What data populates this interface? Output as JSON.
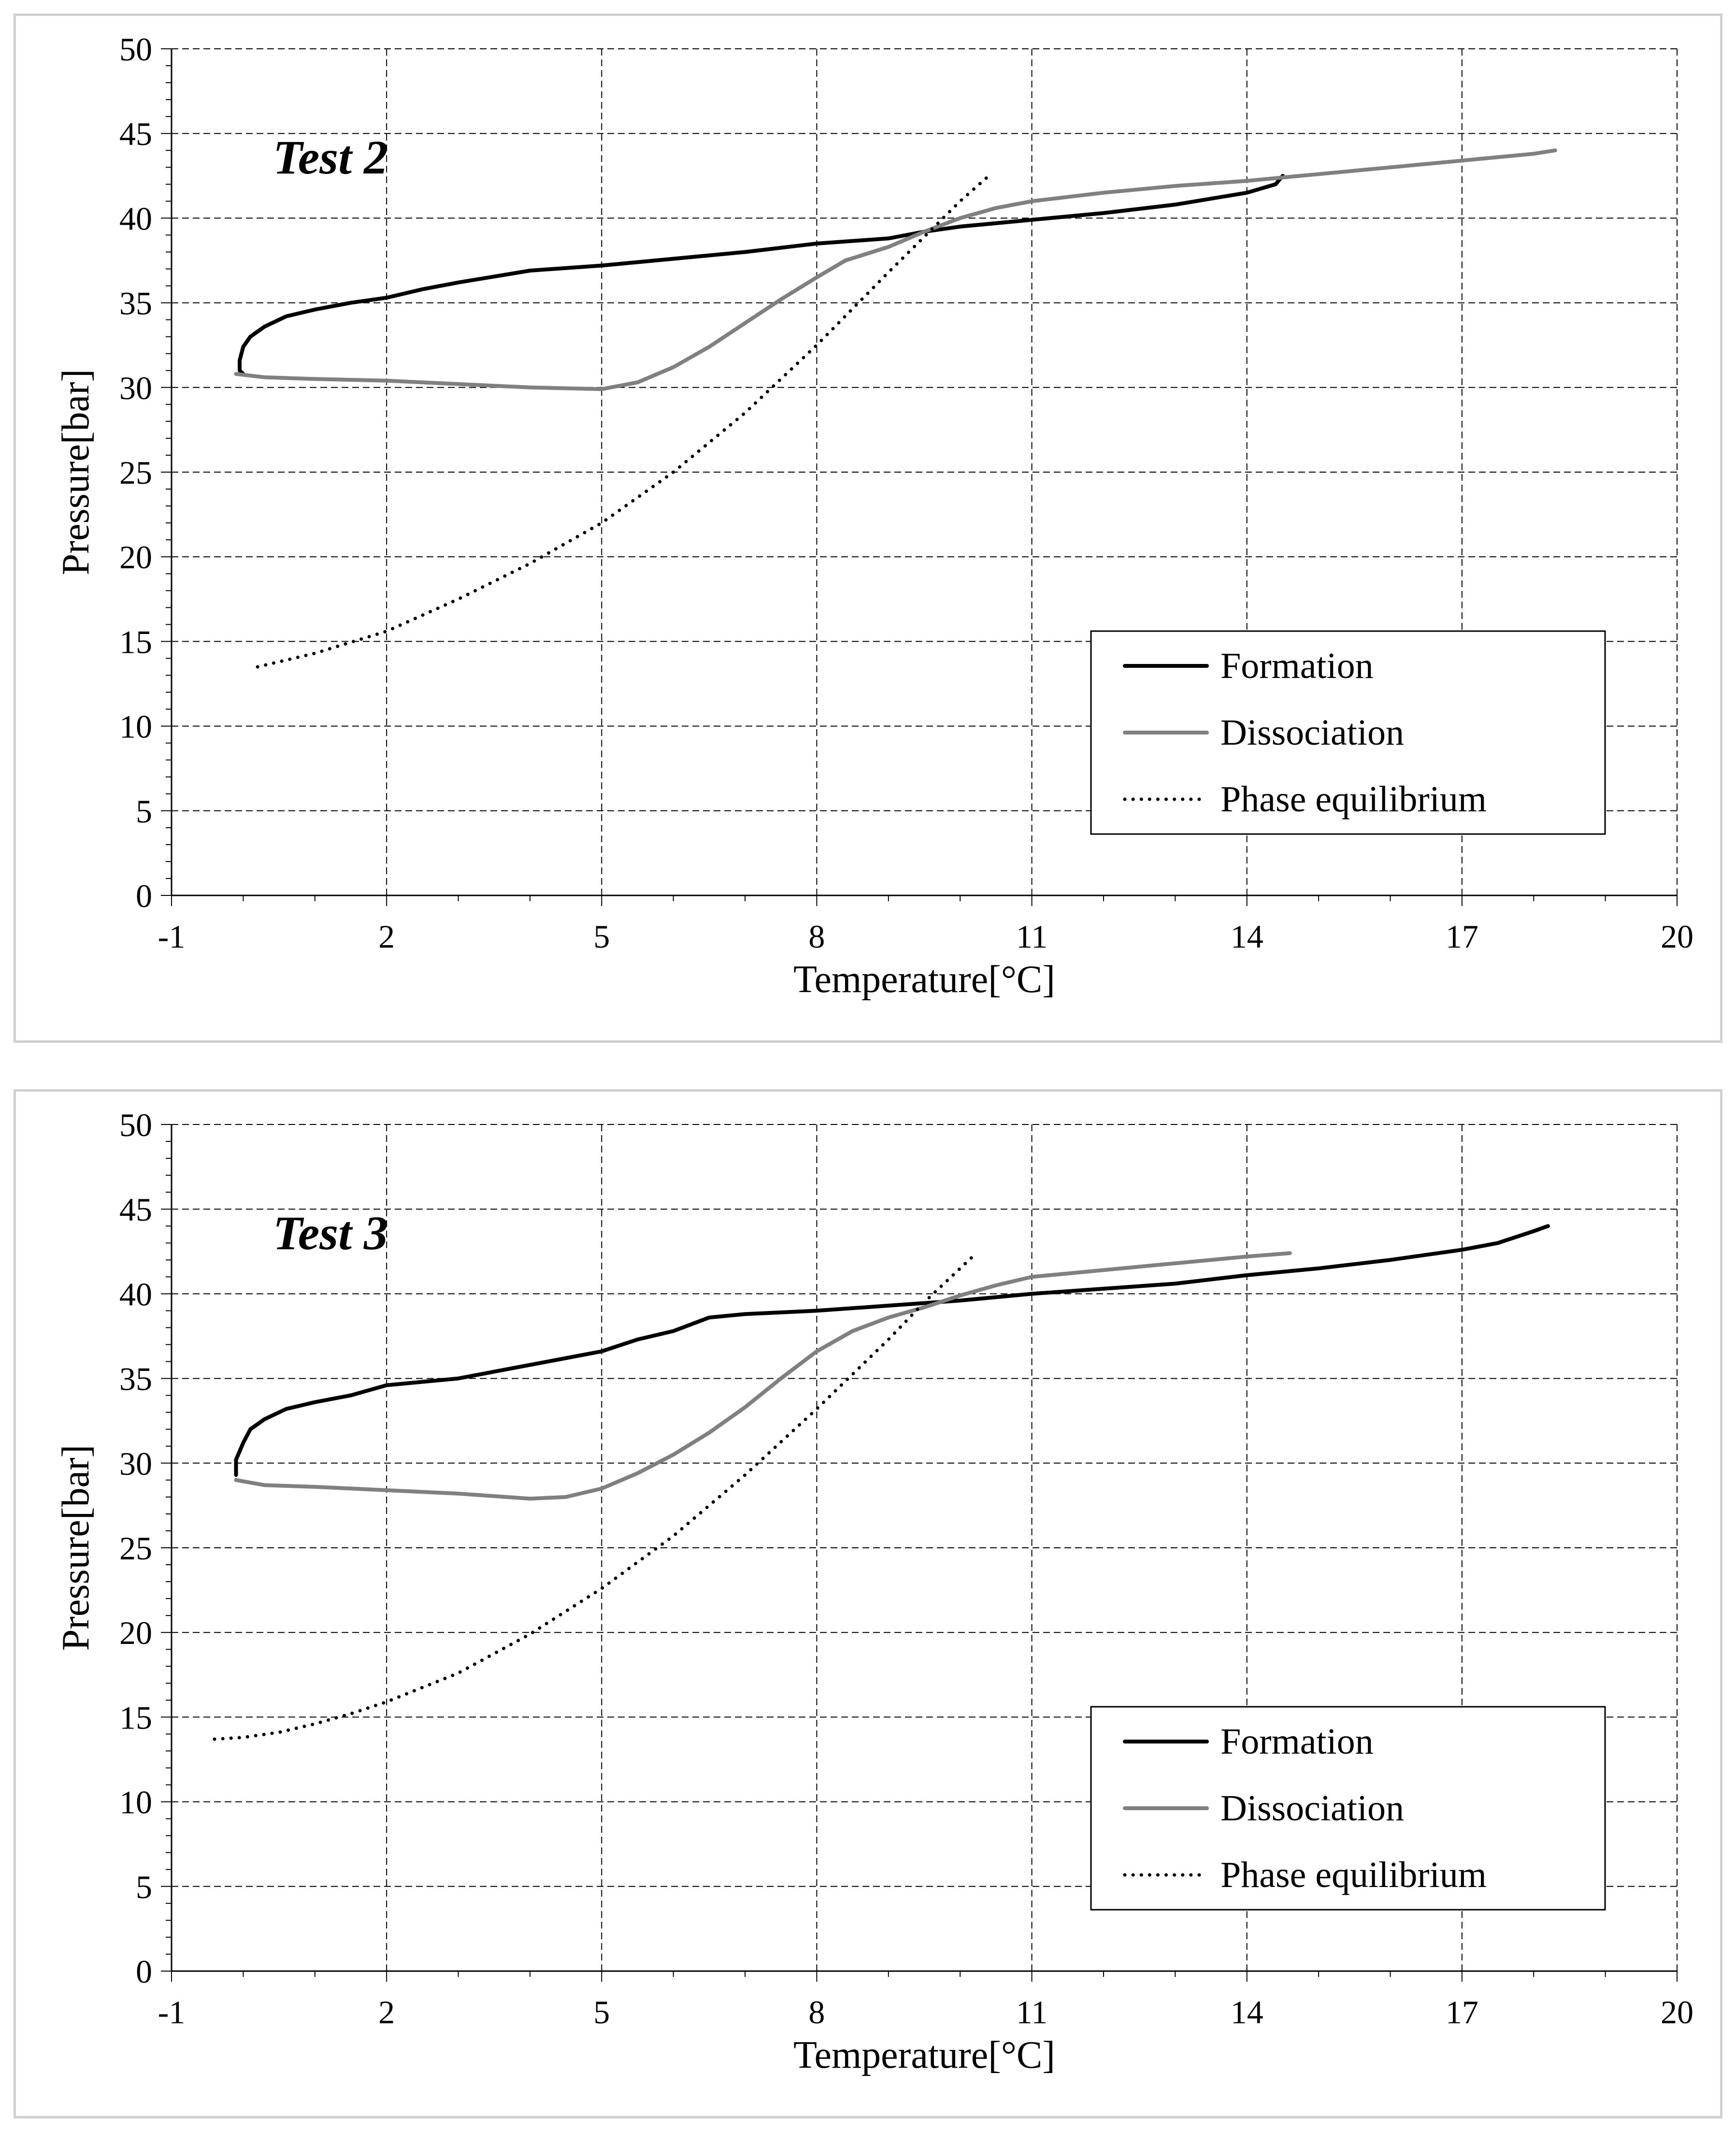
{
  "chart_data": [
    {
      "type": "line",
      "title": "Test 2",
      "xlabel": "Temperature[°C]",
      "ylabel": "Pressure[bar]",
      "xlim": [
        -1,
        20
      ],
      "ylim": [
        0,
        50
      ],
      "xticks": [
        -1,
        2,
        5,
        8,
        11,
        14,
        17,
        20
      ],
      "yticks": [
        0,
        5,
        10,
        15,
        20,
        25,
        30,
        35,
        40,
        45,
        50
      ],
      "grid": true,
      "legend": "bottom-right",
      "series": [
        {
          "name": "Formation",
          "color": "#000000",
          "style": "solid",
          "x": [
            14.5,
            14.4,
            14.0,
            13.0,
            12.0,
            11.0,
            10.0,
            9.5,
            9.0,
            8.0,
            7.0,
            6.0,
            5.0,
            4.0,
            3.0,
            2.5,
            2.0,
            1.5,
            1.0,
            0.6,
            0.3,
            0.1,
            0.0,
            -0.05,
            -0.05,
            0.0
          ],
          "y": [
            42.5,
            42.0,
            41.5,
            40.8,
            40.3,
            39.9,
            39.5,
            39.2,
            38.8,
            38.5,
            38.0,
            37.6,
            37.2,
            36.9,
            36.2,
            35.8,
            35.3,
            35.0,
            34.6,
            34.2,
            33.6,
            33.0,
            32.4,
            31.6,
            31.0,
            30.8
          ]
        },
        {
          "name": "Dissociation",
          "color": "#808080",
          "style": "solid",
          "x": [
            -0.1,
            0.3,
            1.0,
            2.0,
            3.0,
            4.0,
            5.0,
            5.5,
            6.0,
            6.5,
            7.0,
            7.5,
            8.0,
            8.4,
            9.0,
            9.5,
            10.0,
            10.5,
            11.0,
            12.0,
            13.0,
            14.0,
            15.0,
            16.0,
            17.0,
            18.0,
            18.3
          ],
          "y": [
            30.8,
            30.6,
            30.5,
            30.4,
            30.2,
            30.0,
            29.9,
            30.3,
            31.2,
            32.4,
            33.8,
            35.2,
            36.5,
            37.5,
            38.3,
            39.2,
            40.0,
            40.6,
            41.0,
            41.5,
            41.9,
            42.2,
            42.6,
            43.0,
            43.4,
            43.8,
            44.0
          ]
        },
        {
          "name": "Phase equilibrium",
          "color": "#000000",
          "style": "dotted",
          "x": [
            0.2,
            1.0,
            2.0,
            3.0,
            4.0,
            5.0,
            6.0,
            7.0,
            8.0,
            9.0,
            10.0,
            10.4
          ],
          "y": [
            13.5,
            14.3,
            15.6,
            17.5,
            19.6,
            22.0,
            25.0,
            28.5,
            32.5,
            36.8,
            41.0,
            42.5
          ]
        }
      ]
    },
    {
      "type": "line",
      "title": "Test 3",
      "xlabel": "Temperature[°C]",
      "ylabel": "Pressure[bar]",
      "xlim": [
        -1,
        20
      ],
      "ylim": [
        0,
        50
      ],
      "xticks": [
        -1,
        2,
        5,
        8,
        11,
        14,
        17,
        20
      ],
      "yticks": [
        0,
        5,
        10,
        15,
        20,
        25,
        30,
        35,
        40,
        45,
        50
      ],
      "grid": true,
      "legend": "bottom-right",
      "series": [
        {
          "name": "Formation",
          "color": "#000000",
          "style": "solid",
          "x": [
            18.2,
            18.0,
            17.5,
            17.0,
            16.0,
            15.0,
            14.0,
            13.0,
            12.0,
            11.0,
            10.0,
            9.0,
            8.0,
            7.0,
            6.5,
            6.0,
            5.5,
            5.0,
            4.0,
            3.0,
            2.0,
            1.5,
            1.0,
            0.6,
            0.3,
            0.1,
            0.0,
            -0.1,
            -0.1
          ],
          "y": [
            44.0,
            43.7,
            43.0,
            42.6,
            42.0,
            41.5,
            41.1,
            40.6,
            40.3,
            40.0,
            39.6,
            39.3,
            39.0,
            38.8,
            38.6,
            37.8,
            37.3,
            36.6,
            35.8,
            35.0,
            34.6,
            34.0,
            33.6,
            33.2,
            32.6,
            32.0,
            31.2,
            30.2,
            29.3
          ]
        },
        {
          "name": "Dissociation",
          "color": "#808080",
          "style": "solid",
          "x": [
            -0.1,
            0.3,
            1.0,
            2.0,
            3.0,
            4.0,
            4.5,
            5.0,
            5.5,
            6.0,
            6.5,
            7.0,
            7.5,
            8.0,
            8.5,
            9.0,
            9.5,
            10.0,
            10.5,
            11.0,
            12.0,
            13.0,
            14.0,
            14.6
          ],
          "y": [
            29.0,
            28.7,
            28.6,
            28.4,
            28.2,
            27.9,
            28.0,
            28.5,
            29.4,
            30.5,
            31.8,
            33.3,
            35.0,
            36.6,
            37.8,
            38.6,
            39.2,
            39.9,
            40.5,
            41.0,
            41.4,
            41.8,
            42.2,
            42.4
          ]
        },
        {
          "name": "Phase equilibrium",
          "color": "#000000",
          "style": "dotted",
          "x": [
            -0.4,
            0.0,
            0.5,
            1.0,
            1.5,
            2.0,
            3.0,
            4.0,
            5.0,
            6.0,
            7.0,
            8.0,
            9.0,
            9.5,
            10.0,
            10.2
          ],
          "y": [
            13.7,
            13.8,
            14.1,
            14.6,
            15.2,
            15.9,
            17.6,
            19.9,
            22.6,
            25.7,
            29.3,
            33.2,
            37.3,
            39.5,
            41.5,
            42.3
          ]
        }
      ]
    }
  ]
}
